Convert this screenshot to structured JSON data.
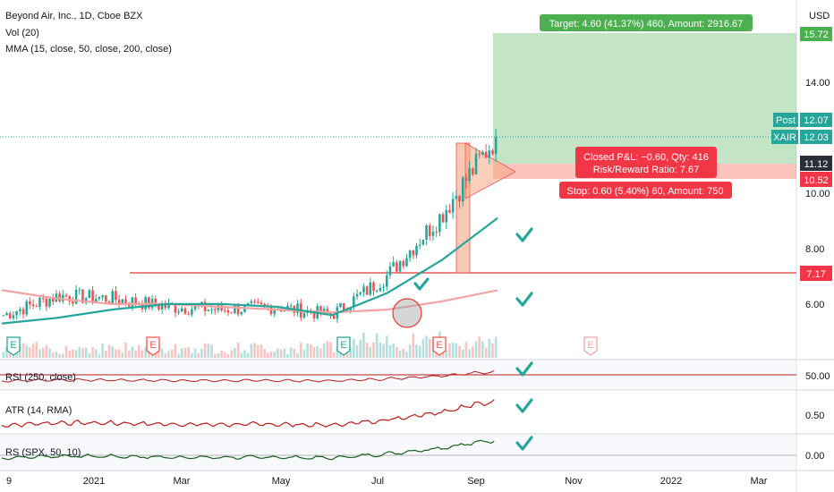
{
  "header": {
    "symbol_line": "Beyond Air, Inc., 1D, Cboe BZX",
    "vol_indicator": "Vol (20)",
    "mma_indicator": "MMA (15, close, 50, close, 200, close)"
  },
  "axis": {
    "currency": "USD",
    "price_ticks": [
      {
        "label": "14.00",
        "v": 14
      },
      {
        "label": "10.00",
        "v": 10
      },
      {
        "label": "8.00",
        "v": 8
      },
      {
        "label": "6.00",
        "v": 6
      }
    ],
    "time_ticks": [
      "9",
      "2021",
      "Mar",
      "May",
      "Jul",
      "Sep",
      "Nov",
      "2022",
      "Mar"
    ]
  },
  "price_labels": {
    "target": "15.72",
    "post_tag": "Post",
    "post_value": "12.07",
    "symbol_tag": "XAIR",
    "last_value": "12.03",
    "entry": "11.12",
    "stop": "10.52",
    "breakout": "7.17"
  },
  "position_tool": {
    "target_text": "Target: 4.60 (41.37%) 460, Amount: 2916.67",
    "closed_pl_text": "Closed P&L: −0.60, Qty: 416",
    "risk_reward_text": "Risk/Reward Ratio: 7.67",
    "stop_text": "Stop: 0.60 (5.40%) 60, Amount: 750",
    "entry": 11.12,
    "target": 15.72,
    "stop": 10.52
  },
  "earnings_markers": [
    "E",
    "E",
    "E",
    "E",
    "E"
  ],
  "panes": [
    {
      "label": "RSI (250, close)",
      "ticks": [
        "50.00"
      ]
    },
    {
      "label": "ATR (14, RMA)",
      "ticks": [
        "0.50"
      ]
    },
    {
      "label": "RS (SPX, 50, 10)",
      "ticks": [
        "0.00"
      ]
    }
  ],
  "colors": {
    "up": "#26a69a",
    "down": "#ef5350",
    "target_zone": "#4caf50",
    "stop_zone": "#f44336",
    "ma_fast": "#26a69a",
    "ma_slow": "#f2a3a3",
    "rsi": "#b71c1c",
    "rs": "#1b5e20",
    "breakout_line": "#e53935",
    "check": "#26a69a"
  },
  "chart_data": {
    "type": "candlestick",
    "title": "Beyond Air, Inc., 1D, Cboe BZX",
    "ylabel": "USD",
    "x": [
      "2020-12",
      "2021-01",
      "2021-02",
      "2021-03",
      "2021-04",
      "2021-05",
      "2021-06",
      "2021-07",
      "2021-08",
      "2021-09"
    ],
    "close_monthly": [
      5.6,
      6.3,
      6.2,
      5.9,
      5.8,
      5.9,
      5.6,
      7.0,
      9.2,
      12.03
    ],
    "ma_50": [
      5.3,
      5.5,
      5.8,
      6.0,
      6.0,
      5.9,
      5.6,
      6.4,
      7.6,
      9.1
    ],
    "ma_200": [
      6.5,
      6.2,
      6.0,
      6.0,
      5.9,
      5.8,
      5.7,
      5.8,
      6.1,
      6.5
    ],
    "ylim": [
      4.5,
      16.5
    ],
    "last_price": 12.03,
    "breakout_level": 7.17
  }
}
